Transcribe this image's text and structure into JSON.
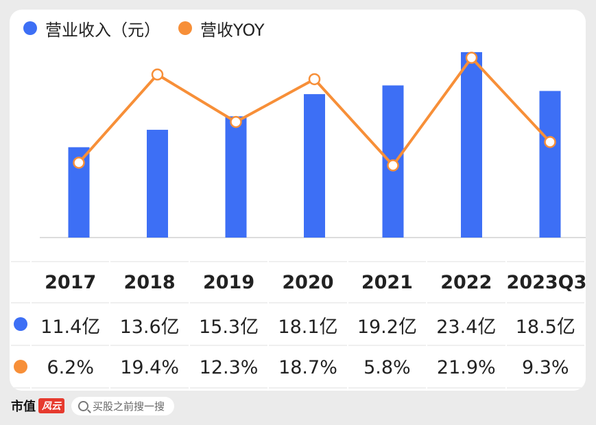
{
  "chart_data": {
    "type": "bar",
    "categories": [
      "2017",
      "2018",
      "2019",
      "2020",
      "2021",
      "2022",
      "2023Q3"
    ],
    "series": [
      {
        "name": "营业收入（元）",
        "type": "bar",
        "color": "#3d6ff5",
        "values": [
          11.4,
          13.6,
          15.3,
          18.1,
          19.2,
          23.4,
          18.5
        ],
        "labels": [
          "11.4亿",
          "13.6亿",
          "15.3亿",
          "18.1亿",
          "19.2亿",
          "23.4亿",
          "18.5亿"
        ]
      },
      {
        "name": "营收YOY",
        "type": "line",
        "color": "#f78f38",
        "values": [
          6.2,
          19.4,
          12.3,
          18.7,
          5.8,
          21.9,
          9.3
        ],
        "labels": [
          "6.2%",
          "19.4%",
          "12.3%",
          "18.7%",
          "5.8%",
          "21.9%",
          "9.3%"
        ]
      }
    ],
    "bar_ylim": [
      0,
      25.3
    ],
    "line_ylim": [
      -5,
      25
    ],
    "grid": false,
    "legend": "top-left"
  },
  "footer": {
    "brand": "市值",
    "brand_badge": "风云",
    "search_placeholder": "买股之前搜一搜"
  }
}
